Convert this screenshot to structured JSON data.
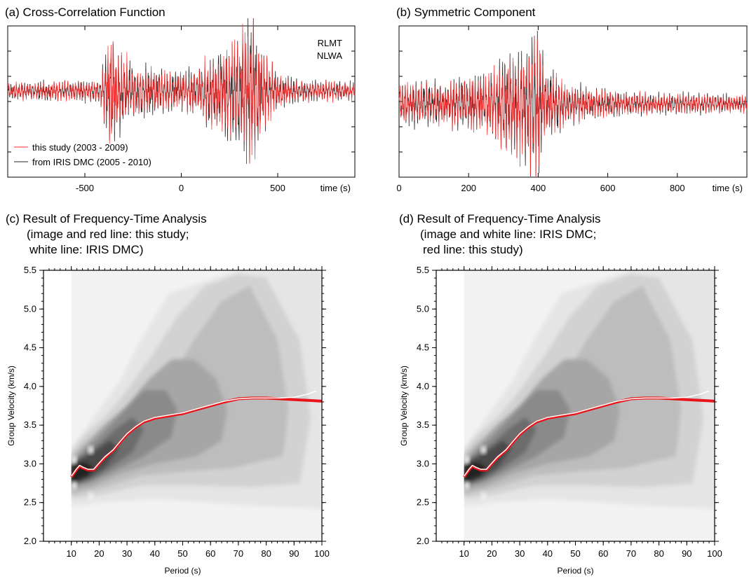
{
  "chart_data": [
    {
      "panel": "a",
      "type": "line",
      "title": "(a)  Cross-Correlation Function",
      "xlabel": "time (s)",
      "ylabel": "",
      "xlim": [
        -900,
        900
      ],
      "xticks": [
        -500,
        0,
        500
      ],
      "xtick_labels": [
        "-500",
        "0",
        "500"
      ],
      "grid": false,
      "annotations": [
        "RLMT",
        "NLWA"
      ],
      "legend_position": "bottom-left",
      "series": [
        {
          "name": "this study (2003 - 2009)",
          "color": "#ff2a2a"
        },
        {
          "name": "from IRIS DMC (2005 - 2010)",
          "color": "#222222"
        }
      ],
      "envelope": {
        "x": [
          -900,
          -420,
          -390,
          -360,
          -330,
          -280,
          -220,
          -100,
          0,
          100,
          180,
          250,
          300,
          340,
          370,
          395,
          420,
          450,
          500,
          600,
          900
        ],
        "amplitude": [
          0.12,
          0.15,
          0.55,
          0.85,
          0.6,
          0.45,
          0.35,
          0.3,
          0.25,
          0.35,
          0.55,
          0.65,
          0.8,
          0.95,
          1.0,
          0.9,
          0.55,
          0.4,
          0.25,
          0.15,
          0.12
        ]
      }
    },
    {
      "panel": "b",
      "type": "line",
      "title": "(b)  Symmetric Component",
      "xlabel": "time (s)",
      "ylabel": "",
      "xlim": [
        0,
        1000
      ],
      "xticks": [
        0,
        200,
        400,
        600,
        800
      ],
      "xtick_labels": [
        "0",
        "200",
        "400",
        "600",
        "800"
      ],
      "grid": false,
      "series": [
        {
          "name": "this study",
          "color": "#ff2a2a"
        },
        {
          "name": "IRIS DMC",
          "color": "#222222"
        }
      ],
      "envelope": {
        "x": [
          0,
          100,
          200,
          280,
          320,
          350,
          380,
          400,
          420,
          480,
          560,
          700,
          1000
        ],
        "amplitude": [
          0.3,
          0.3,
          0.35,
          0.5,
          0.8,
          0.75,
          0.95,
          1.0,
          0.5,
          0.3,
          0.2,
          0.15,
          0.12
        ]
      }
    },
    {
      "panel": "c",
      "type": "heatmap",
      "title_lines": [
        "(c)  Result of Frequency-Time Analysis",
        "(image and red line: this study;",
        "white line: IRIS DMC)"
      ],
      "xlabel": "Period (s)",
      "ylabel": "Group Velocity (km/s)",
      "xlim": [
        0,
        100
      ],
      "ylim": [
        2.0,
        5.5
      ],
      "xticks": [
        10,
        20,
        30,
        40,
        50,
        60,
        70,
        80,
        90,
        100
      ],
      "xtick_labels": [
        "10",
        "20",
        "30",
        "40",
        "50",
        "60",
        "70",
        "80",
        "90",
        "100"
      ],
      "yticks": [
        2.0,
        2.5,
        3.0,
        3.5,
        4.0,
        4.5,
        5.0,
        5.5
      ],
      "ytick_labels": [
        "2.0",
        "2.5",
        "3.0",
        "3.5",
        "4.0",
        "4.5",
        "5.0",
        "5.5"
      ],
      "dispersion_curves": [
        {
          "name": "this study",
          "color": "#e8141a",
          "period": [
            10,
            11,
            12,
            13,
            14,
            16,
            18,
            20,
            22,
            25,
            28,
            30,
            33,
            36,
            40,
            45,
            50,
            55,
            60,
            65,
            70,
            75,
            80,
            85,
            90,
            95,
            100
          ],
          "velocity": [
            2.83,
            2.88,
            2.93,
            2.97,
            2.95,
            2.92,
            2.92,
            3.0,
            3.08,
            3.17,
            3.3,
            3.38,
            3.47,
            3.54,
            3.59,
            3.62,
            3.65,
            3.7,
            3.75,
            3.8,
            3.84,
            3.85,
            3.85,
            3.84,
            3.83,
            3.82,
            3.81
          ]
        },
        {
          "name": "IRIS DMC",
          "color": "#ffffff",
          "period": [
            10,
            11,
            12,
            13,
            14,
            16,
            18,
            20,
            22,
            25,
            28,
            30,
            33,
            36,
            40,
            45,
            50,
            55,
            60,
            65,
            70,
            75,
            80,
            85,
            90,
            95,
            98
          ],
          "velocity": [
            2.84,
            2.89,
            2.94,
            2.98,
            2.96,
            2.93,
            2.93,
            3.01,
            3.09,
            3.18,
            3.31,
            3.39,
            3.48,
            3.55,
            3.6,
            3.63,
            3.66,
            3.71,
            3.76,
            3.81,
            3.84,
            3.85,
            3.85,
            3.85,
            3.86,
            3.9,
            3.94
          ]
        }
      ]
    },
    {
      "panel": "d",
      "type": "heatmap",
      "title_lines": [
        "(d)  Result of Frequency-Time Analysis",
        "(image and white line: IRIS DMC;",
        "red line: this study)"
      ],
      "xlabel": "Period (s)",
      "ylabel": "Group Velocity (km/s)",
      "xlim": [
        0,
        100
      ],
      "ylim": [
        2.0,
        5.5
      ],
      "xticks": [
        10,
        20,
        30,
        40,
        50,
        60,
        70,
        80,
        90,
        100
      ],
      "xtick_labels": [
        "10",
        "20",
        "30",
        "40",
        "50",
        "60",
        "70",
        "80",
        "90",
        "100"
      ],
      "yticks": [
        2.0,
        2.5,
        3.0,
        3.5,
        4.0,
        4.5,
        5.0,
        5.5
      ],
      "ytick_labels": [
        "2.0",
        "2.5",
        "3.0",
        "3.5",
        "4.0",
        "4.5",
        "5.0",
        "5.5"
      ],
      "dispersion_curves": [
        {
          "name": "this study",
          "color": "#e8141a",
          "period": [
            10,
            11,
            12,
            13,
            14,
            16,
            18,
            20,
            22,
            25,
            28,
            30,
            33,
            36,
            40,
            45,
            50,
            55,
            60,
            65,
            70,
            75,
            80,
            85,
            90,
            95,
            100
          ],
          "velocity": [
            2.83,
            2.88,
            2.93,
            2.97,
            2.95,
            2.92,
            2.92,
            3.0,
            3.08,
            3.17,
            3.3,
            3.38,
            3.47,
            3.54,
            3.59,
            3.62,
            3.65,
            3.7,
            3.75,
            3.8,
            3.84,
            3.85,
            3.85,
            3.84,
            3.83,
            3.82,
            3.81
          ]
        },
        {
          "name": "IRIS DMC",
          "color": "#ffffff",
          "period": [
            10,
            11,
            12,
            13,
            14,
            16,
            18,
            20,
            22,
            25,
            28,
            30,
            33,
            36,
            40,
            45,
            50,
            55,
            60,
            65,
            70,
            75,
            80,
            85,
            90,
            95,
            98
          ],
          "velocity": [
            2.84,
            2.89,
            2.94,
            2.98,
            2.96,
            2.93,
            2.93,
            3.01,
            3.09,
            3.18,
            3.31,
            3.39,
            3.48,
            3.55,
            3.6,
            3.63,
            3.66,
            3.71,
            3.76,
            3.81,
            3.84,
            3.85,
            3.85,
            3.85,
            3.86,
            3.9,
            3.94
          ]
        }
      ]
    }
  ]
}
